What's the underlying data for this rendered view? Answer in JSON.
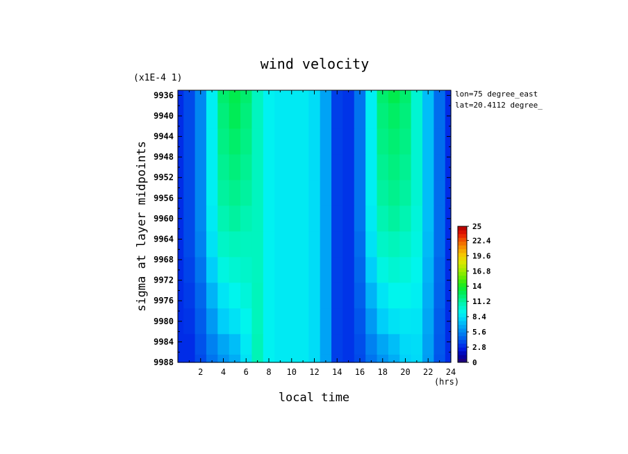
{
  "chart_data": {
    "type": "heatmap",
    "title": "wind velocity",
    "xlabel": "local time",
    "ylabel": "sigma at layer midpoints",
    "x_unit": "(hrs)",
    "y_scale_note": "(x1E-4 1)",
    "annotations": [
      "lon=75 degree_east",
      "lat=20.4112 degree_"
    ],
    "xlim": [
      0,
      24
    ],
    "ylim": [
      9935,
      9988
    ],
    "x_ticks": [
      2,
      4,
      6,
      8,
      10,
      12,
      14,
      16,
      18,
      20,
      22,
      24
    ],
    "x_tick_labels": [
      "2",
      "4",
      "6",
      "8",
      "10",
      "12",
      "14",
      "16",
      "18",
      "20",
      "22",
      "24"
    ],
    "y_ticks": [
      9936,
      9940,
      9944,
      9948,
      9952,
      9956,
      9960,
      9964,
      9968,
      9972,
      9976,
      9980,
      9984,
      9988
    ],
    "y_tick_labels": [
      "9936",
      "9940",
      "9944",
      "9948",
      "9952",
      "9956",
      "9960",
      "9964",
      "9968",
      "9972",
      "9976",
      "9980",
      "9984",
      "9988"
    ],
    "colorbar": {
      "min": 0,
      "max": 25,
      "levels": 36,
      "tick_values": [
        0,
        2.8,
        5.6,
        8.4,
        11.2,
        14,
        16.8,
        19.6,
        22.4,
        25
      ],
      "tick_labels": [
        "0",
        "2.8",
        "5.6",
        "8.4",
        "11.2",
        "14",
        "16.8",
        "19.6",
        "22.4",
        "25"
      ]
    },
    "x": [
      0,
      1,
      2,
      3,
      4,
      5,
      6,
      7,
      8,
      9,
      10,
      11,
      12,
      13,
      14,
      15,
      16,
      17,
      18,
      19,
      20,
      21,
      22,
      23,
      24
    ],
    "y": [
      9935,
      9940,
      9945,
      9950,
      9955,
      9960,
      9965,
      9970,
      9975,
      9980,
      9985,
      9988
    ],
    "z": [
      [
        3.0,
        3.8,
        5.6,
        9.0,
        12.3,
        13.0,
        12.3,
        10.5,
        9.1,
        8.8,
        8.8,
        8.8,
        8.3,
        6.5,
        3.5,
        3.2,
        5.0,
        9.0,
        12.3,
        13.0,
        12.3,
        10.0,
        7.3,
        4.8,
        3.0
      ],
      [
        3.0,
        3.8,
        5.6,
        9.0,
        12.0,
        12.8,
        12.0,
        10.5,
        9.1,
        8.8,
        8.8,
        8.8,
        8.3,
        6.5,
        3.5,
        3.2,
        5.0,
        9.0,
        12.0,
        12.5,
        12.0,
        10.0,
        7.3,
        4.8,
        3.0
      ],
      [
        3.0,
        3.8,
        5.6,
        9.0,
        11.8,
        12.4,
        11.8,
        10.5,
        9.1,
        8.8,
        8.8,
        8.8,
        8.3,
        6.5,
        3.5,
        3.2,
        5.0,
        9.0,
        11.8,
        12.2,
        11.8,
        10.0,
        7.3,
        4.8,
        3.0
      ],
      [
        3.0,
        3.8,
        5.6,
        9.0,
        11.5,
        12.0,
        11.5,
        10.5,
        9.1,
        8.8,
        8.8,
        8.8,
        8.3,
        6.5,
        3.5,
        3.2,
        5.0,
        9.0,
        11.5,
        11.9,
        11.5,
        10.0,
        7.3,
        4.8,
        3.0
      ],
      [
        3.0,
        3.8,
        5.6,
        9.0,
        11.2,
        11.6,
        11.2,
        10.5,
        9.1,
        8.8,
        8.8,
        8.8,
        8.3,
        6.5,
        3.5,
        3.2,
        5.0,
        9.0,
        11.2,
        11.6,
        11.2,
        10.0,
        7.3,
        4.8,
        3.0
      ],
      [
        3.0,
        3.8,
        5.6,
        8.8,
        10.8,
        11.2,
        10.8,
        10.5,
        9.1,
        8.8,
        8.8,
        8.8,
        8.3,
        6.5,
        3.5,
        3.2,
        5.0,
        8.8,
        10.8,
        11.2,
        10.8,
        9.8,
        7.3,
        4.8,
        3.0
      ],
      [
        3.0,
        3.8,
        5.4,
        8.5,
        10.3,
        10.6,
        10.5,
        10.5,
        9.1,
        8.8,
        8.8,
        8.8,
        8.3,
        6.5,
        3.5,
        3.2,
        4.8,
        8.5,
        10.3,
        10.6,
        10.3,
        9.6,
        7.2,
        4.8,
        3.0
      ],
      [
        3.0,
        3.6,
        5.0,
        7.8,
        9.6,
        10.0,
        10.2,
        10.5,
        9.1,
        8.8,
        8.8,
        8.8,
        8.3,
        6.5,
        3.5,
        3.2,
        4.6,
        7.8,
        9.6,
        10.0,
        9.8,
        9.3,
        7.0,
        4.6,
        3.0
      ],
      [
        3.0,
        3.4,
        4.6,
        7.0,
        8.6,
        9.3,
        9.8,
        10.6,
        9.1,
        8.8,
        8.8,
        8.8,
        8.3,
        6.5,
        3.5,
        3.2,
        4.4,
        7.0,
        8.6,
        9.3,
        9.3,
        9.0,
        6.8,
        4.5,
        3.0
      ],
      [
        3.0,
        3.2,
        4.3,
        6.2,
        7.8,
        8.5,
        9.3,
        10.6,
        9.1,
        8.8,
        8.8,
        8.8,
        8.3,
        6.5,
        3.5,
        3.2,
        4.1,
        6.2,
        7.8,
        8.5,
        8.7,
        8.6,
        6.6,
        4.3,
        3.0
      ],
      [
        3.0,
        3.0,
        4.0,
        5.4,
        6.6,
        7.3,
        8.8,
        10.7,
        9.1,
        8.8,
        8.8,
        8.8,
        8.3,
        6.5,
        3.5,
        3.2,
        3.9,
        5.4,
        6.6,
        7.3,
        8.2,
        8.3,
        6.4,
        4.2,
        3.0
      ],
      [
        3.0,
        3.0,
        3.8,
        5.0,
        6.0,
        6.8,
        8.5,
        10.7,
        9.1,
        8.8,
        8.8,
        8.8,
        8.3,
        6.5,
        3.5,
        3.2,
        3.8,
        5.0,
        6.0,
        6.8,
        7.9,
        8.2,
        6.3,
        4.1,
        3.0
      ]
    ]
  }
}
